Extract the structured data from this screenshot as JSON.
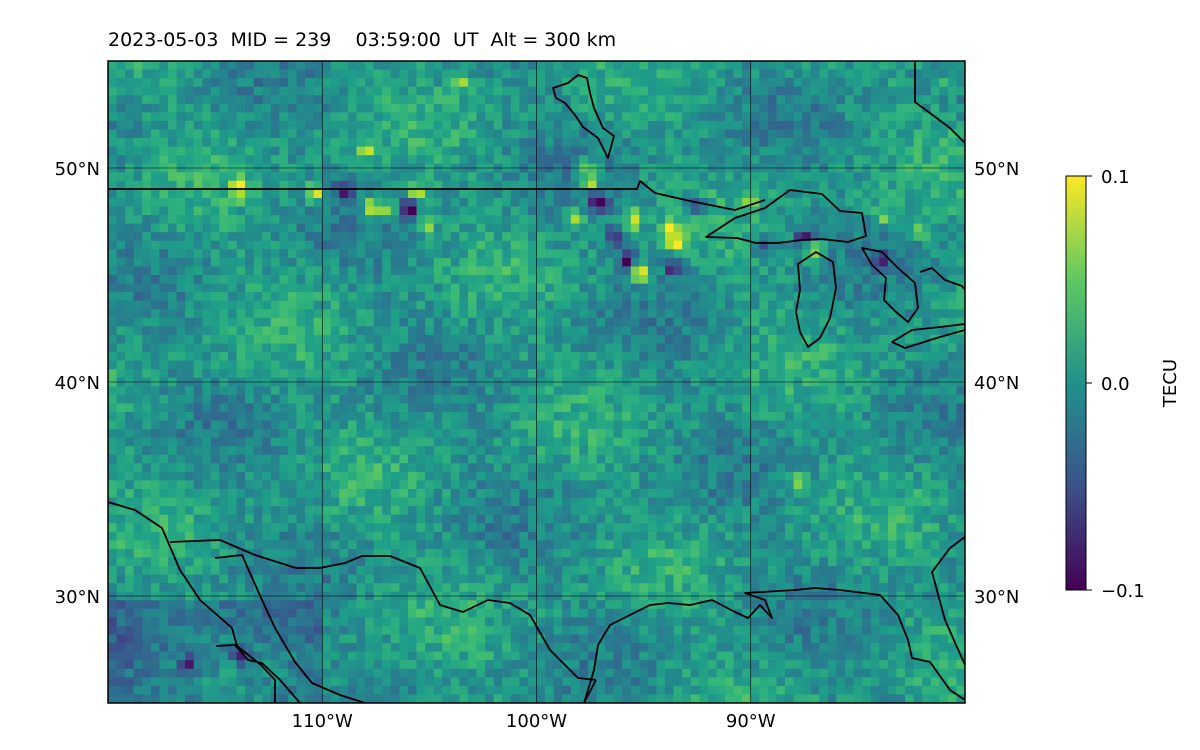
{
  "title": "2023-05-03  MID = 239    03:59:00  UT  Alt = 300 km",
  "map": {
    "lat_range": [
      25,
      55
    ],
    "lon_range": [
      -120,
      -80
    ],
    "lat_ticks": [
      {
        "value": 50,
        "label": "50°N"
      },
      {
        "value": 40,
        "label": "40°N"
      },
      {
        "value": 30,
        "label": "30°N"
      }
    ],
    "lon_ticks": [
      {
        "value": -110,
        "label": "110°W"
      },
      {
        "value": -100,
        "label": "100°W"
      },
      {
        "value": -90,
        "label": "90°W"
      }
    ],
    "gridlines": true,
    "projection": "PlateCarree"
  },
  "colorbar": {
    "label": "TECU",
    "min": -0.1,
    "max": 0.1,
    "ticks": [
      {
        "value": 0.1,
        "label": "0.1"
      },
      {
        "value": 0.0,
        "label": "0.0"
      },
      {
        "value": -0.1,
        "label": "−0.1"
      }
    ],
    "colormap": "viridis",
    "colors": [
      "#440154",
      "#3b528b",
      "#21918c",
      "#5ec962",
      "#fde725"
    ]
  },
  "chart_data": {
    "type": "heatmap",
    "title": "2023-05-03  MID = 239    03:59:00  UT  Alt = 300 km",
    "xlabel": "",
    "ylabel": "",
    "xlim": [
      -120,
      -80
    ],
    "ylim": [
      25,
      55
    ],
    "value_range": [
      -0.1,
      0.1
    ],
    "units": "TECU",
    "background_value": 0.005,
    "hotspots": [
      {
        "lon": -114.1,
        "lat": 49.2,
        "value": 0.1
      },
      {
        "lon": -110.6,
        "lat": 49.0,
        "value": 0.1
      },
      {
        "lon": -109.2,
        "lat": 49.0,
        "value": -0.09
      },
      {
        "lon": -108.0,
        "lat": 48.4,
        "value": 0.1
      },
      {
        "lon": -107.2,
        "lat": 48.3,
        "value": 0.08
      },
      {
        "lon": -106.1,
        "lat": 48.3,
        "value": -0.1
      },
      {
        "lon": -105.7,
        "lat": 49.0,
        "value": 0.1
      },
      {
        "lon": -105.4,
        "lat": 47.6,
        "value": 0.08
      },
      {
        "lon": -108.2,
        "lat": 51.0,
        "value": 0.07
      },
      {
        "lon": -103.8,
        "lat": 54.2,
        "value": 0.07
      },
      {
        "lon": -97.7,
        "lat": 49.5,
        "value": 0.1
      },
      {
        "lon": -97.8,
        "lat": 50.2,
        "value": 0.09
      },
      {
        "lon": -97.3,
        "lat": 48.6,
        "value": -0.1
      },
      {
        "lon": -98.4,
        "lat": 47.9,
        "value": 0.07
      },
      {
        "lon": -95.7,
        "lat": 47.8,
        "value": 0.09
      },
      {
        "lon": -96.5,
        "lat": 47.0,
        "value": -0.09
      },
      {
        "lon": -96.0,
        "lat": 45.8,
        "value": -0.1
      },
      {
        "lon": -95.4,
        "lat": 45.3,
        "value": 0.1
      },
      {
        "lon": -94.0,
        "lat": 47.3,
        "value": 0.09
      },
      {
        "lon": -93.6,
        "lat": 46.7,
        "value": 0.1
      },
      {
        "lon": -93.8,
        "lat": 45.5,
        "value": -0.09
      },
      {
        "lon": -92.7,
        "lat": 48.4,
        "value": -0.08
      },
      {
        "lon": -90.2,
        "lat": 48.7,
        "value": 0.07
      },
      {
        "lon": -87.8,
        "lat": 47.0,
        "value": -0.08
      },
      {
        "lon": -89.5,
        "lat": 46.5,
        "value": -0.08
      },
      {
        "lon": -87.2,
        "lat": 46.2,
        "value": 0.09
      },
      {
        "lon": -84.0,
        "lat": 47.9,
        "value": 0.06
      },
      {
        "lon": -82.3,
        "lat": 47.3,
        "value": 0.05
      },
      {
        "lon": -84.0,
        "lat": 46.0,
        "value": -0.08
      },
      {
        "lon": -88.0,
        "lat": 35.5,
        "value": 0.06
      },
      {
        "lon": -81.0,
        "lat": 54.0,
        "value": 0.04
      },
      {
        "lon": -114.0,
        "lat": 27.5,
        "value": -0.08
      },
      {
        "lon": -116.5,
        "lat": 27.0,
        "value": -0.06
      }
    ]
  }
}
